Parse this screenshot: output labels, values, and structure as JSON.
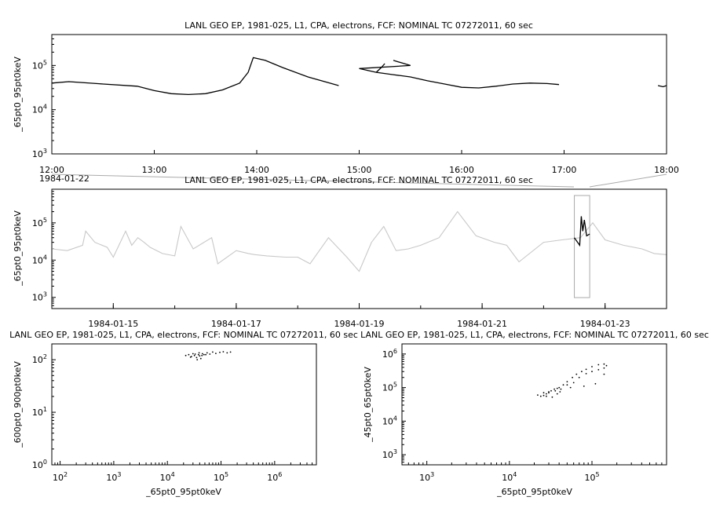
{
  "panels": {
    "top": {
      "title": "LANL GEO EP, 1981-025, L1, CPA, electrons, FCF: NOMINAL TC 07272011, 60 sec",
      "ylabel": "_65pt0_95pt0keV"
    },
    "middle": {
      "title": "LANL GEO EP, 1981-025, L1, CPA, electrons, FCF: NOMINAL TC 07272011, 60 sec",
      "ylabel": "_65pt0_95pt0keV"
    },
    "bottom_left": {
      "title": "LANL GEO EP, 1981-025, L1, CPA, electrons, FCF: NOMINAL TC 07272011, 60 sec",
      "xlabel": "_65pt0_95pt0keV",
      "ylabel": "_600pt0_900pt0keV"
    },
    "bottom_right": {
      "title": "LANL GEO EP, 1981-025, L1, CPA, electrons, FCF: NOMINAL TC 07272011, 60 sec",
      "xlabel": "_65pt0_95pt0keV",
      "ylabel": "_45pt0_65pt0keV"
    }
  },
  "chart_data": [
    {
      "type": "line",
      "title": "LANL GEO EP, 1981-025, L1, CPA, electrons, FCF: NOMINAL TC 07272011, 60 sec",
      "xlabel": "",
      "ylabel": "_65pt0_95pt0keV",
      "yscale": "log",
      "xlim": [
        "1984-01-22 12:00",
        "1984-01-22 18:00"
      ],
      "ylim": [
        1000,
        500000
      ],
      "x_ticks": [
        "12:00",
        "13:00",
        "14:00",
        "15:00",
        "16:00",
        "17:00",
        "18:00"
      ],
      "x_tick_date": "1984-01-22",
      "y_ticks": [
        "10^3",
        "10^4",
        "10^5"
      ],
      "color": "#000000",
      "segments": [
        {
          "x": [
            "12:00",
            "12:10",
            "12:30",
            "12:50",
            "13:00",
            "13:10",
            "13:20",
            "13:30",
            "13:40",
            "13:50",
            "13:55",
            "13:58",
            "14:05",
            "14:15",
            "14:30",
            "14:48"
          ],
          "y": [
            40000,
            43000,
            38000,
            34000,
            27000,
            23000,
            22000,
            23000,
            28000,
            40000,
            70000,
            150000,
            130000,
            90000,
            55000,
            35000
          ]
        },
        {
          "x": [
            "14:70",
            "14:73",
            "14:75"
          ],
          "y": [
            70000,
            90000,
            110000
          ]
        },
        {
          "x": [
            "14:80",
            "14:90",
            "15:00",
            "15:10",
            "15:20",
            "15:30",
            "15:40",
            "15:50",
            "16:00",
            "16:10",
            "16:20",
            "16:30",
            "16:40",
            "16:50",
            "16:57"
          ],
          "y": [
            130000,
            100000,
            85000,
            70000,
            62000,
            55000,
            45000,
            38000,
            32000,
            31000,
            34000,
            38000,
            40000,
            39000,
            37000
          ]
        },
        {
          "x": [
            "17:55",
            "17:58",
            "18:00"
          ],
          "y": [
            35000,
            33000,
            35000
          ]
        }
      ]
    },
    {
      "type": "line",
      "title": "LANL GEO EP, 1981-025, L1, CPA, electrons, FCF: NOMINAL TC 07272011, 60 sec",
      "xlabel": "",
      "ylabel": "_65pt0_95pt0keV",
      "yscale": "log",
      "xlim": [
        "1984-01-14",
        "1984-01-24"
      ],
      "ylim": [
        500,
        800000
      ],
      "x_ticks": [
        "1984-01-15",
        "1984-01-17",
        "1984-01-19",
        "1984-01-21",
        "1984-01-23"
      ],
      "y_ticks": [
        "10^3",
        "10^4",
        "10^5"
      ],
      "highlight": {
        "x_start": "1984-01-22 12:00",
        "x_end": "1984-01-22 18:00",
        "color": "#000000"
      },
      "color": "#c8c8c8",
      "x_days": [
        0,
        0.25,
        0.5,
        0.55,
        0.7,
        0.9,
        1.0,
        1.2,
        1.3,
        1.4,
        1.5,
        1.6,
        1.8,
        2.0,
        2.1,
        2.3,
        2.6,
        2.7,
        3.0,
        3.2,
        3.3,
        3.5,
        3.8,
        4.0,
        4.2,
        4.5,
        4.8,
        5.0,
        5.2,
        5.4,
        5.6,
        5.8,
        6.0,
        6.3,
        6.6,
        6.9,
        7.2,
        7.4,
        7.6,
        8.0,
        8.3,
        8.6,
        8.8,
        9.0,
        9.3,
        9.6,
        9.8,
        10.0
      ],
      "y_values": [
        20000,
        18000,
        25000,
        60000,
        30000,
        22000,
        12000,
        60000,
        25000,
        40000,
        30000,
        22000,
        15000,
        13000,
        80000,
        20000,
        40000,
        8000,
        18000,
        15000,
        14000,
        13000,
        12000,
        12000,
        8000,
        40000,
        12000,
        5000,
        30000,
        80000,
        18000,
        20000,
        25000,
        40000,
        200000,
        45000,
        30000,
        25000,
        9000,
        30000,
        35000,
        40000,
        100000,
        35000,
        25000,
        20000,
        15000,
        14000
      ]
    },
    {
      "type": "scatter",
      "title": "LANL GEO EP, 1981-025, L1, CPA, electrons, FCF: NOMINAL TC 07272011, 60 sec",
      "xlabel": "_65pt0_95pt0keV",
      "ylabel": "_600pt0_900pt0keV",
      "xscale": "log",
      "yscale": "log",
      "xlim": [
        70,
        6000000
      ],
      "ylim": [
        1,
        200
      ],
      "x_ticks": [
        "10^2",
        "10^3",
        "10^4",
        "10^5",
        "10^6"
      ],
      "y_ticks": [
        "10^0",
        "10^1",
        "10^2"
      ],
      "points": [
        [
          22000,
          120
        ],
        [
          25000,
          125
        ],
        [
          28000,
          115
        ],
        [
          30000,
          130
        ],
        [
          32000,
          120
        ],
        [
          35000,
          110
        ],
        [
          38000,
          125
        ],
        [
          40000,
          118
        ],
        [
          42000,
          105
        ],
        [
          45000,
          130
        ],
        [
          48000,
          125
        ],
        [
          55000,
          135
        ],
        [
          62000,
          128
        ],
        [
          70000,
          140
        ],
        [
          80000,
          132
        ],
        [
          95000,
          138
        ],
        [
          110000,
          142
        ],
        [
          130000,
          135
        ],
        [
          150000,
          140
        ],
        [
          27000,
          112
        ],
        [
          33000,
          128
        ],
        [
          36000,
          100
        ],
        [
          39000,
          135
        ],
        [
          44000,
          120
        ],
        [
          52000,
          125
        ]
      ]
    },
    {
      "type": "scatter",
      "title": "LANL GEO EP, 1981-025, L1, CPA, electrons, FCF: NOMINAL TC 07272011, 60 sec",
      "xlabel": "_65pt0_95pt0keV",
      "ylabel": "_45pt0_65pt0keV",
      "xscale": "log",
      "yscale": "log",
      "xlim": [
        500,
        800000
      ],
      "ylim": [
        500,
        2000000
      ],
      "x_ticks": [
        "10^3",
        "10^4",
        "10^5"
      ],
      "y_ticks": [
        "10^3",
        "10^4",
        "10^5",
        "10^6"
      ],
      "points": [
        [
          22000,
          60000
        ],
        [
          24000,
          55000
        ],
        [
          26000,
          58000
        ],
        [
          28000,
          65000
        ],
        [
          30000,
          70000
        ],
        [
          32000,
          80000
        ],
        [
          35000,
          90000
        ],
        [
          38000,
          95000
        ],
        [
          40000,
          100000
        ],
        [
          45000,
          120000
        ],
        [
          50000,
          150000
        ],
        [
          58000,
          200000
        ],
        [
          65000,
          250000
        ],
        [
          75000,
          300000
        ],
        [
          85000,
          350000
        ],
        [
          100000,
          420000
        ],
        [
          120000,
          480000
        ],
        [
          140000,
          500000
        ],
        [
          150000,
          450000
        ],
        [
          140000,
          380000
        ],
        [
          120000,
          340000
        ],
        [
          100000,
          300000
        ],
        [
          85000,
          260000
        ],
        [
          70000,
          200000
        ],
        [
          60000,
          140000
        ],
        [
          50000,
          120000
        ],
        [
          42000,
          90000
        ],
        [
          36000,
          80000
        ],
        [
          30000,
          75000
        ],
        [
          26000,
          70000
        ],
        [
          28000,
          55000
        ],
        [
          33000,
          52000
        ],
        [
          38000,
          65000
        ],
        [
          41000,
          75000
        ],
        [
          55000,
          100000
        ],
        [
          80000,
          110000
        ],
        [
          110000,
          130000
        ],
        [
          140000,
          250000
        ]
      ]
    }
  ]
}
